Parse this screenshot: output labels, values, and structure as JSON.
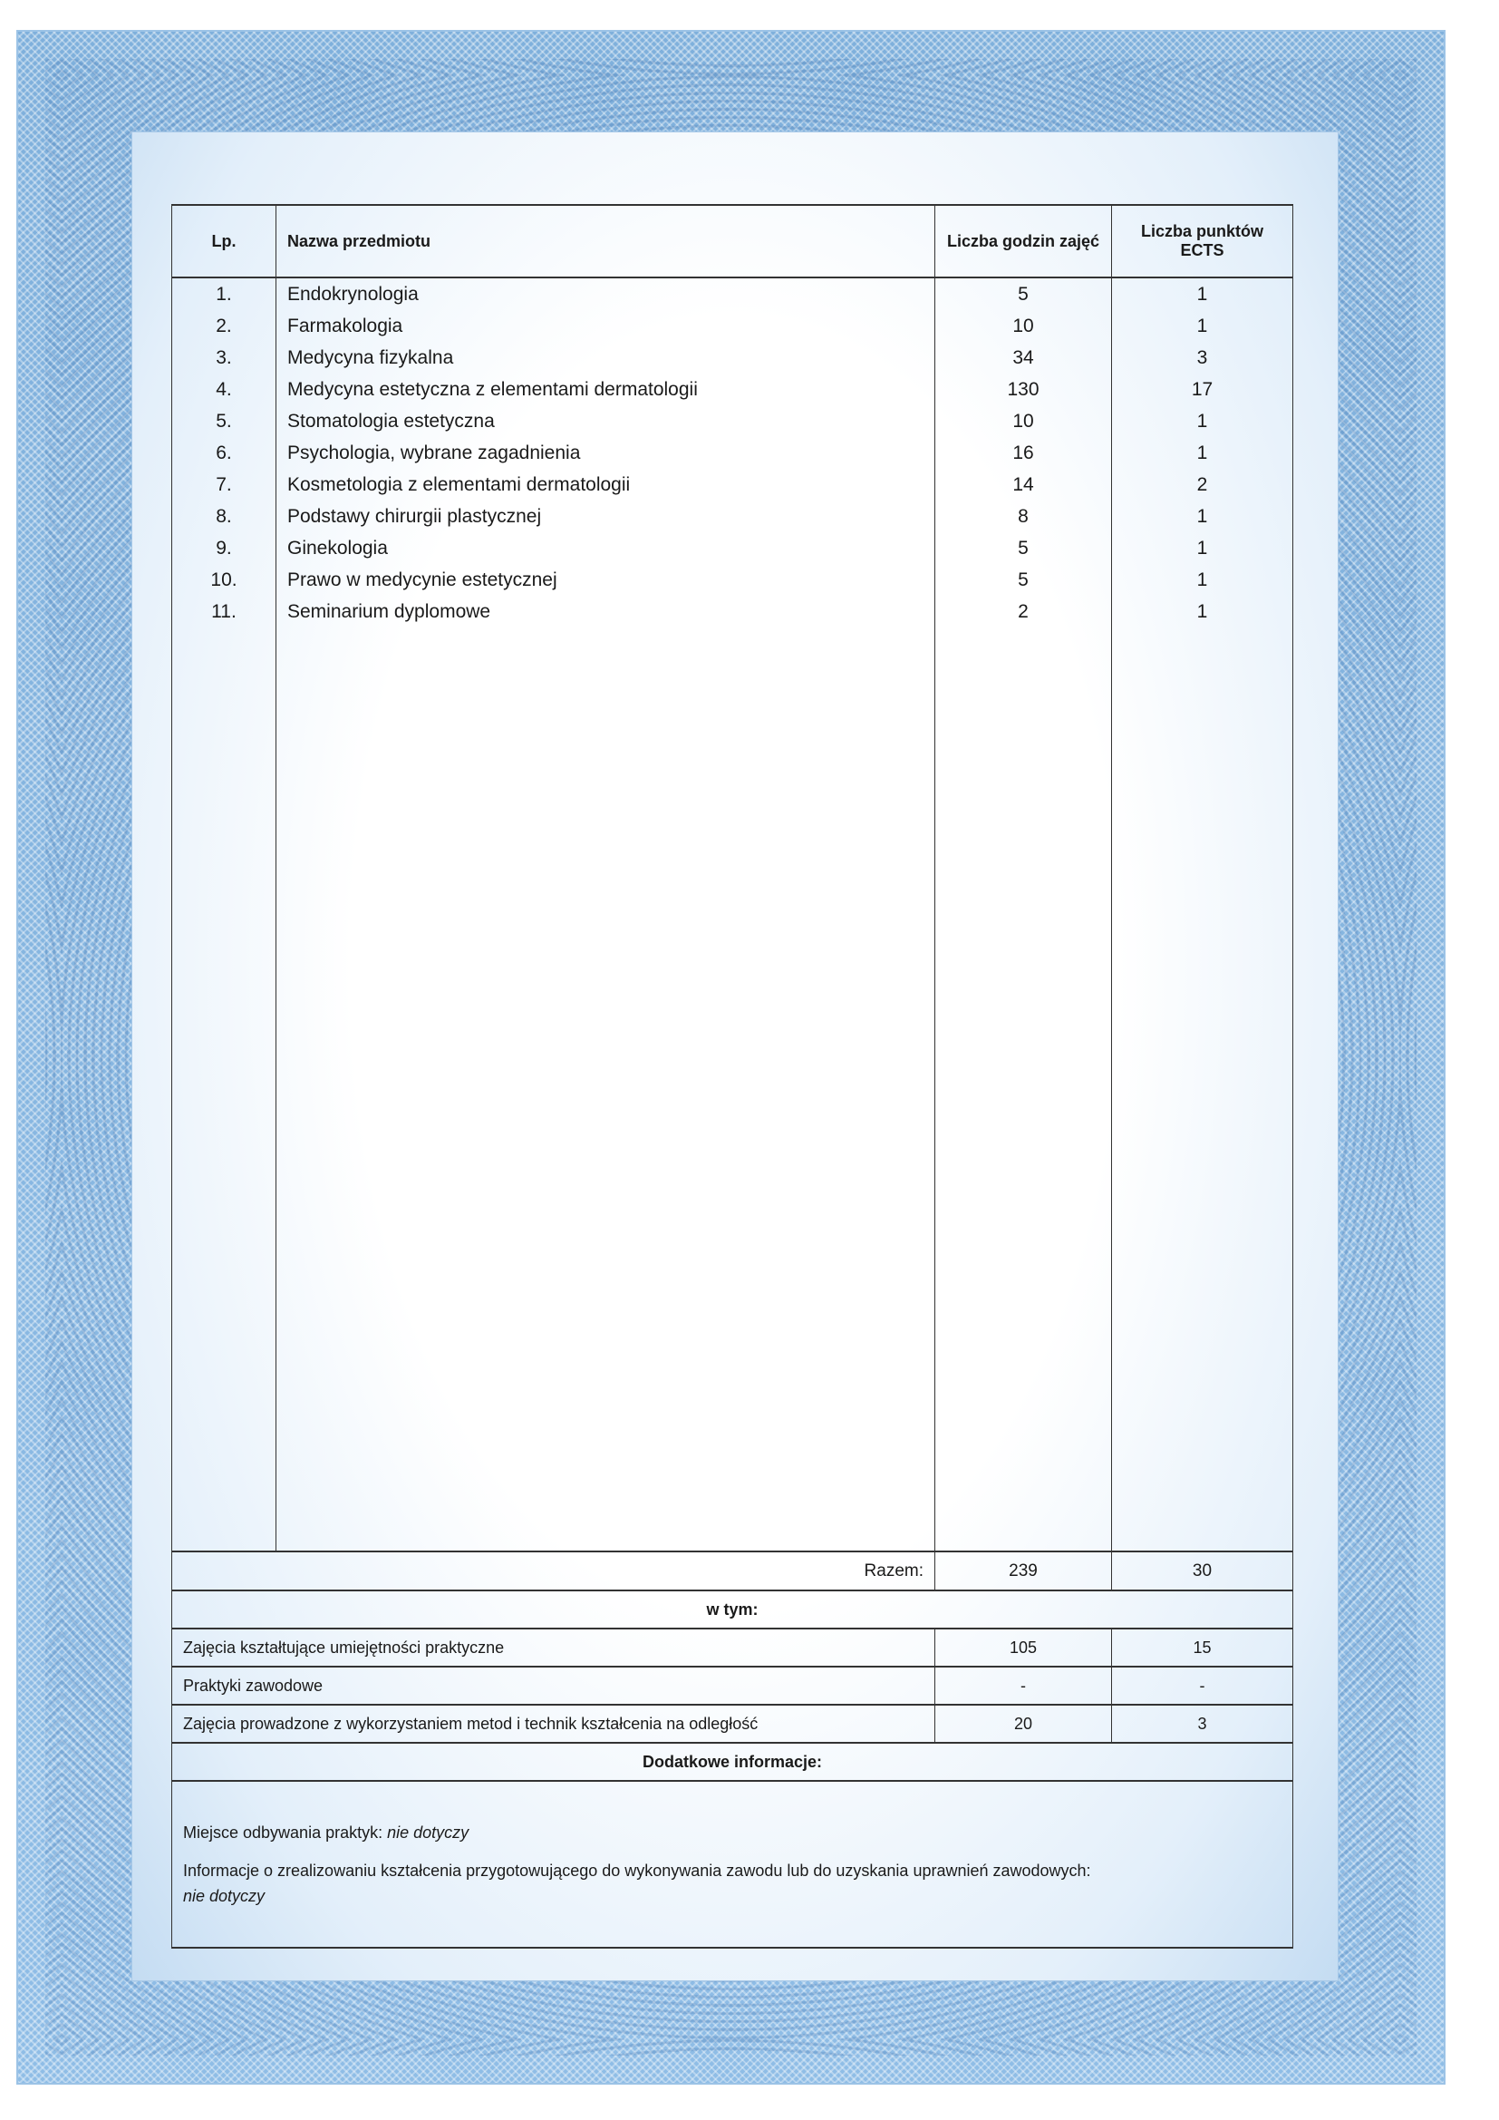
{
  "table": {
    "headers": {
      "lp": "Lp.",
      "name": "Nazwa przedmiotu",
      "hours": "Liczba godzin zajęć",
      "ects": "Liczba punktów ECTS"
    },
    "rows": [
      {
        "lp": "1.",
        "name": "Endokrynologia",
        "hours": "5",
        "ects": "1"
      },
      {
        "lp": "2.",
        "name": "Farmakologia",
        "hours": "10",
        "ects": "1"
      },
      {
        "lp": "3.",
        "name": "Medycyna fizykalna",
        "hours": "34",
        "ects": "3"
      },
      {
        "lp": "4.",
        "name": "Medycyna estetyczna z elementami dermatologii",
        "hours": "130",
        "ects": "17"
      },
      {
        "lp": "5.",
        "name": "Stomatologia estetyczna",
        "hours": "10",
        "ects": "1"
      },
      {
        "lp": "6.",
        "name": "Psychologia, wybrane zagadnienia",
        "hours": "16",
        "ects": "1"
      },
      {
        "lp": "7.",
        "name": "Kosmetologia z elementami dermatologii",
        "hours": "14",
        "ects": "2"
      },
      {
        "lp": "8.",
        "name": "Podstawy chirurgii plastycznej",
        "hours": "8",
        "ects": "1"
      },
      {
        "lp": "9.",
        "name": "Ginekologia",
        "hours": "5",
        "ects": "1"
      },
      {
        "lp": "10.",
        "name": "Prawo w medycynie estetycznej",
        "hours": "5",
        "ects": "1"
      },
      {
        "lp": "11.",
        "name": "Seminarium dyplomowe",
        "hours": "2",
        "ects": "1"
      }
    ],
    "total": {
      "label": "Razem:",
      "hours": "239",
      "ects": "30"
    },
    "including_label": "w tym:",
    "breakdown": [
      {
        "label": "Zajęcia kształtujące umiejętności praktyczne",
        "hours": "105",
        "ects": "15"
      },
      {
        "label": "Praktyki zawodowe",
        "hours": "-",
        "ects": "-"
      },
      {
        "label": "Zajęcia prowadzone z wykorzystaniem metod i technik kształcenia na odległość",
        "hours": "20",
        "ects": "3"
      }
    ],
    "additional_title": "Dodatkowe informacje:",
    "practice_place_label": "Miejsce odbywania praktyk:",
    "practice_place_value": "nie dotyczy",
    "prep_info_label": "Informacje o zrealizowaniu kształcenia przygotowującego do wykonywania zawodu lub do uzyskania uprawnień zawodowych:",
    "prep_info_value": "nie dotyczy"
  },
  "colors": {
    "frame": "#8fbde6",
    "ink": "#1a1a1a"
  }
}
